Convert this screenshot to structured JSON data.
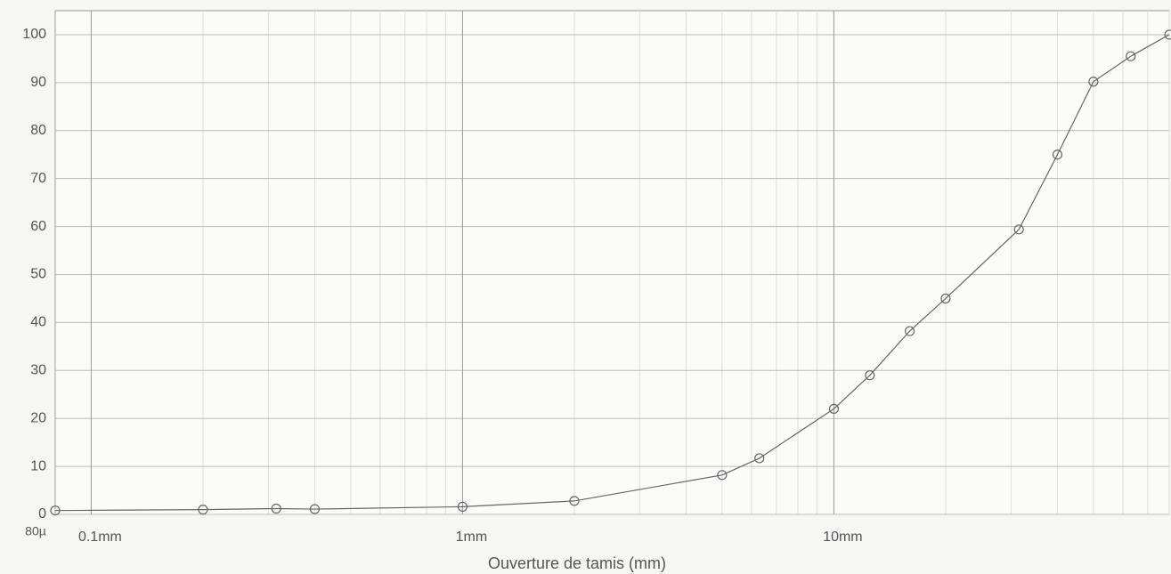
{
  "chart_data": {
    "type": "line",
    "x_label": "Ouverture de tamis (mm)",
    "log_x": true,
    "x": [
      0.08,
      0.2,
      0.315,
      0.4,
      1,
      2,
      5,
      6.3,
      10,
      12.5,
      16,
      20,
      31.5,
      40,
      50,
      63,
      80
    ],
    "series": [
      {
        "color": "#666666",
        "values": [
          0.8,
          1,
          1.2,
          1.1,
          1.6,
          2.8,
          8.2,
          11.7,
          22,
          29,
          38.2,
          45,
          59.4,
          75,
          90.2,
          95.5,
          100
        ]
      }
    ],
    "xlim": [
      0.08,
      80
    ],
    "ylim": [
      0,
      105
    ],
    "xticks": [
      {
        "value": 0.08,
        "label": "80µ"
      },
      {
        "value": 0.1,
        "label": "0.1mm"
      },
      {
        "value": 1,
        "label": "1mm"
      },
      {
        "value": 10,
        "label": "10mm"
      }
    ],
    "xminorticks": [
      0.2,
      0.3,
      0.4,
      0.5,
      0.6,
      0.7,
      0.8,
      0.9,
      2,
      3,
      4,
      5,
      6,
      7,
      8,
      9,
      20,
      30,
      40,
      50,
      60,
      70,
      80
    ],
    "yticks": [
      0,
      10,
      20,
      30,
      40,
      50,
      60,
      70,
      80,
      90,
      100
    ],
    "grid": true
  }
}
